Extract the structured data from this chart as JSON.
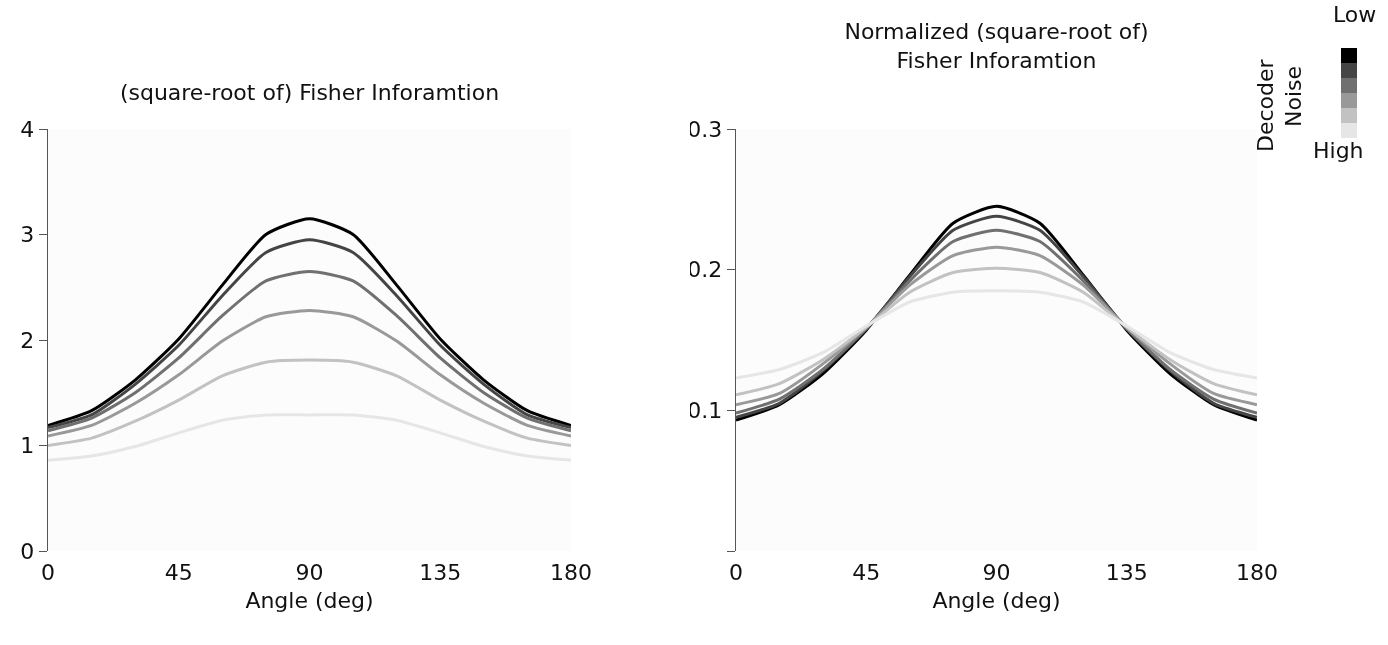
{
  "chart_data": [
    {
      "type": "line",
      "title": "(square-root of) Fisher Inforamtion",
      "xlabel": "Angle (deg)",
      "x": [
        0,
        15,
        30,
        45,
        60,
        75,
        90,
        105,
        120,
        135,
        150,
        165,
        180
      ],
      "xlim": [
        0,
        180
      ],
      "xticks": [
        0,
        45,
        90,
        135,
        180
      ],
      "ylim": [
        0,
        4
      ],
      "yticks": [
        {
          "value": 0,
          "label": "0"
        },
        1,
        2,
        3,
        4
      ],
      "grid": false,
      "marker": "none",
      "line_style": "solid",
      "series": [
        {
          "color": "#000000",
          "values": [
            1.19,
            1.33,
            1.62,
            2.01,
            2.52,
            3.0,
            3.15,
            3.0,
            2.52,
            2.01,
            1.62,
            1.33,
            1.19
          ]
        },
        {
          "color": "#454545",
          "values": [
            1.17,
            1.29,
            1.58,
            1.95,
            2.42,
            2.83,
            2.95,
            2.83,
            2.42,
            1.95,
            1.58,
            1.29,
            1.17
          ]
        },
        {
          "color": "#707070",
          "values": [
            1.14,
            1.26,
            1.5,
            1.83,
            2.23,
            2.56,
            2.65,
            2.56,
            2.23,
            1.83,
            1.5,
            1.26,
            1.14
          ]
        },
        {
          "color": "#999999",
          "values": [
            1.09,
            1.19,
            1.4,
            1.67,
            1.99,
            2.22,
            2.28,
            2.22,
            1.99,
            1.67,
            1.4,
            1.19,
            1.09
          ]
        },
        {
          "color": "#c2c2c2",
          "values": [
            1.0,
            1.07,
            1.23,
            1.43,
            1.66,
            1.79,
            1.81,
            1.79,
            1.66,
            1.43,
            1.23,
            1.07,
            1.0
          ]
        },
        {
          "color": "#e6e6e6",
          "values": [
            0.86,
            0.9,
            0.99,
            1.12,
            1.24,
            1.29,
            1.29,
            1.29,
            1.24,
            1.12,
            0.99,
            0.9,
            0.86
          ]
        }
      ]
    },
    {
      "type": "line",
      "title": "Normalized (square-root of) Fisher Inforamtion",
      "xlabel": "Angle (deg)",
      "x": [
        0,
        15,
        30,
        45,
        60,
        75,
        90,
        105,
        120,
        135,
        150,
        165,
        180
      ],
      "xlim": [
        0,
        180
      ],
      "xticks": [
        0,
        45,
        90,
        135,
        180
      ],
      "ylim": [
        0,
        0.3
      ],
      "yticks": [
        {
          "value": 0,
          "label": null
        },
        0.1,
        0.2,
        0.3
      ],
      "grid": false,
      "legend_title": "Decoder Noise",
      "annotations": [
        "Low",
        "High"
      ],
      "marker": "none",
      "line_style": "solid",
      "series": [
        {
          "color": "#000000",
          "values": [
            0.093,
            0.104,
            0.126,
            0.157,
            0.196,
            0.233,
            0.245,
            0.233,
            0.196,
            0.157,
            0.126,
            0.104,
            0.093
          ]
        },
        {
          "color": "#454545",
          "values": [
            0.095,
            0.105,
            0.128,
            0.158,
            0.195,
            0.228,
            0.238,
            0.228,
            0.195,
            0.158,
            0.128,
            0.105,
            0.095
          ]
        },
        {
          "color": "#707070",
          "values": [
            0.098,
            0.108,
            0.129,
            0.158,
            0.192,
            0.22,
            0.228,
            0.22,
            0.192,
            0.158,
            0.129,
            0.108,
            0.098
          ]
        },
        {
          "color": "#999999",
          "values": [
            0.104,
            0.112,
            0.133,
            0.159,
            0.189,
            0.21,
            0.216,
            0.21,
            0.189,
            0.159,
            0.133,
            0.112,
            0.104
          ]
        },
        {
          "color": "#c2c2c2",
          "values": [
            0.111,
            0.119,
            0.136,
            0.159,
            0.184,
            0.198,
            0.201,
            0.198,
            0.184,
            0.159,
            0.136,
            0.119,
            0.111
          ]
        },
        {
          "color": "#e6e6e6",
          "values": [
            0.123,
            0.129,
            0.141,
            0.16,
            0.177,
            0.184,
            0.185,
            0.184,
            0.177,
            0.16,
            0.141,
            0.129,
            0.123
          ]
        }
      ]
    }
  ]
}
